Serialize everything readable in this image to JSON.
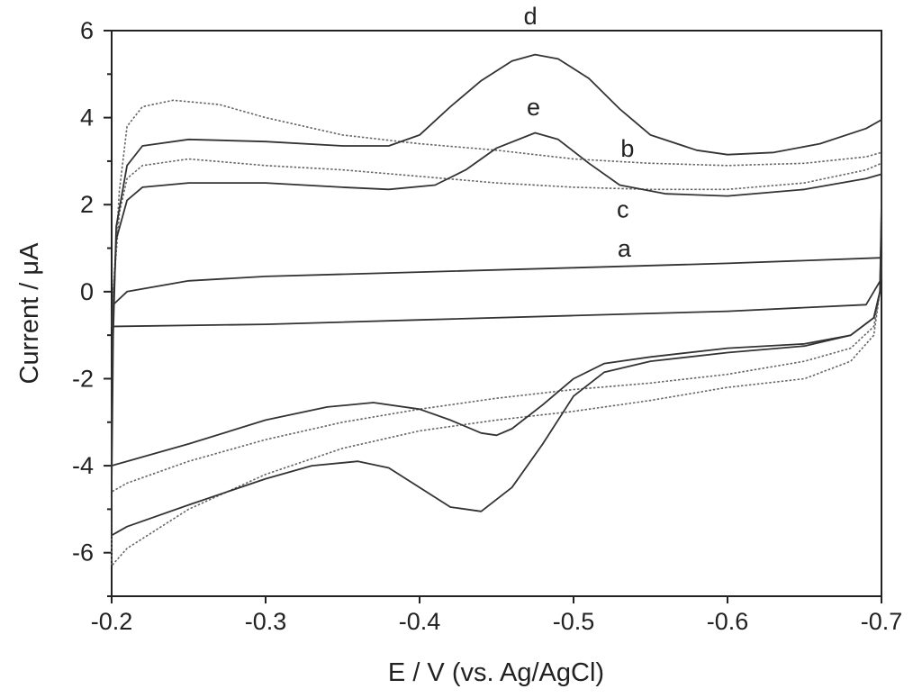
{
  "chart_data": {
    "type": "line",
    "xlabel": "E / V (vs. Ag/AgCl)",
    "ylabel": "Current / μA",
    "xlim": [
      -0.2,
      -0.7
    ],
    "ylim": [
      -7,
      6
    ],
    "x_axis_reversed": true,
    "x_ticks": [
      -0.2,
      -0.3,
      -0.4,
      -0.5,
      -0.6,
      -0.7
    ],
    "y_ticks": [
      -6,
      -4,
      -2,
      0,
      2,
      4,
      6
    ],
    "x_tick_labels": [
      "-0.2",
      "-0.3",
      "-0.4",
      "-0.5",
      "-0.6",
      "-0.7"
    ],
    "y_tick_labels": [
      "-6",
      "-4",
      "-2",
      "0",
      "2",
      "4",
      "6"
    ],
    "grid": false,
    "series": [
      {
        "name": "a",
        "style": "solid",
        "label_pos": [
          -0.533,
          0.8
        ],
        "points": [
          [
            -0.2,
            -0.7
          ],
          [
            -0.201,
            -0.3
          ],
          [
            -0.21,
            0.0
          ],
          [
            -0.25,
            0.25
          ],
          [
            -0.3,
            0.35
          ],
          [
            -0.4,
            0.45
          ],
          [
            -0.5,
            0.55
          ],
          [
            -0.6,
            0.65
          ],
          [
            -0.7,
            0.78
          ],
          [
            -0.7,
            0.3
          ],
          [
            -0.69,
            -0.3
          ],
          [
            -0.6,
            -0.45
          ],
          [
            -0.5,
            -0.55
          ],
          [
            -0.4,
            -0.65
          ],
          [
            -0.3,
            -0.75
          ],
          [
            -0.2,
            -0.8
          ],
          [
            -0.2,
            -0.7
          ]
        ]
      },
      {
        "name": "b",
        "style": "dotted",
        "label_pos": [
          -0.535,
          3.1
        ],
        "points": [
          [
            -0.2,
            -3.5
          ],
          [
            -0.201,
            0.0
          ],
          [
            -0.205,
            2.3
          ],
          [
            -0.21,
            3.8
          ],
          [
            -0.22,
            4.25
          ],
          [
            -0.24,
            4.4
          ],
          [
            -0.27,
            4.3
          ],
          [
            -0.3,
            4.0
          ],
          [
            -0.35,
            3.6
          ],
          [
            -0.4,
            3.4
          ],
          [
            -0.45,
            3.25
          ],
          [
            -0.5,
            3.05
          ],
          [
            -0.55,
            2.95
          ],
          [
            -0.6,
            2.9
          ],
          [
            -0.65,
            2.95
          ],
          [
            -0.69,
            3.1
          ],
          [
            -0.7,
            3.2
          ],
          [
            -0.7,
            2.0
          ],
          [
            -0.699,
            0.0
          ],
          [
            -0.695,
            -1.0
          ],
          [
            -0.68,
            -1.6
          ],
          [
            -0.65,
            -2.0
          ],
          [
            -0.6,
            -2.2
          ],
          [
            -0.55,
            -2.5
          ],
          [
            -0.5,
            -2.75
          ],
          [
            -0.45,
            -2.95
          ],
          [
            -0.4,
            -3.2
          ],
          [
            -0.35,
            -3.6
          ],
          [
            -0.3,
            -4.2
          ],
          [
            -0.25,
            -5.0
          ],
          [
            -0.21,
            -5.9
          ],
          [
            -0.2,
            -6.3
          ],
          [
            -0.2,
            -3.5
          ]
        ]
      },
      {
        "name": "c",
        "style": "dotted",
        "label_pos": [
          -0.532,
          1.7
        ],
        "points": [
          [
            -0.2,
            -3.0
          ],
          [
            -0.201,
            0.0
          ],
          [
            -0.205,
            1.8
          ],
          [
            -0.21,
            2.6
          ],
          [
            -0.22,
            2.9
          ],
          [
            -0.25,
            3.05
          ],
          [
            -0.3,
            2.9
          ],
          [
            -0.35,
            2.8
          ],
          [
            -0.4,
            2.65
          ],
          [
            -0.45,
            2.5
          ],
          [
            -0.5,
            2.4
          ],
          [
            -0.55,
            2.35
          ],
          [
            -0.6,
            2.35
          ],
          [
            -0.65,
            2.5
          ],
          [
            -0.69,
            2.8
          ],
          [
            -0.7,
            2.95
          ],
          [
            -0.7,
            1.8
          ],
          [
            -0.699,
            0.0
          ],
          [
            -0.695,
            -0.8
          ],
          [
            -0.68,
            -1.3
          ],
          [
            -0.65,
            -1.6
          ],
          [
            -0.6,
            -1.9
          ],
          [
            -0.55,
            -2.1
          ],
          [
            -0.5,
            -2.25
          ],
          [
            -0.45,
            -2.45
          ],
          [
            -0.4,
            -2.7
          ],
          [
            -0.35,
            -3.0
          ],
          [
            -0.3,
            -3.4
          ],
          [
            -0.25,
            -3.9
          ],
          [
            -0.21,
            -4.4
          ],
          [
            -0.2,
            -4.6
          ],
          [
            -0.2,
            -3.0
          ]
        ]
      },
      {
        "name": "d",
        "style": "solid",
        "label_pos": [
          -0.472,
          6.15
        ],
        "points": [
          [
            -0.2,
            -4.5
          ],
          [
            -0.201,
            -1.0
          ],
          [
            -0.203,
            1.5
          ],
          [
            -0.21,
            2.9
          ],
          [
            -0.22,
            3.35
          ],
          [
            -0.25,
            3.5
          ],
          [
            -0.3,
            3.45
          ],
          [
            -0.35,
            3.35
          ],
          [
            -0.38,
            3.35
          ],
          [
            -0.4,
            3.6
          ],
          [
            -0.42,
            4.25
          ],
          [
            -0.44,
            4.85
          ],
          [
            -0.46,
            5.3
          ],
          [
            -0.475,
            5.45
          ],
          [
            -0.49,
            5.35
          ],
          [
            -0.51,
            4.9
          ],
          [
            -0.53,
            4.2
          ],
          [
            -0.55,
            3.6
          ],
          [
            -0.58,
            3.25
          ],
          [
            -0.6,
            3.15
          ],
          [
            -0.63,
            3.2
          ],
          [
            -0.66,
            3.4
          ],
          [
            -0.69,
            3.75
          ],
          [
            -0.7,
            3.95
          ],
          [
            -0.7,
            2.0
          ],
          [
            -0.699,
            0.0
          ],
          [
            -0.695,
            -0.6
          ],
          [
            -0.68,
            -1.0
          ],
          [
            -0.65,
            -1.25
          ],
          [
            -0.6,
            -1.4
          ],
          [
            -0.55,
            -1.6
          ],
          [
            -0.52,
            -1.85
          ],
          [
            -0.5,
            -2.4
          ],
          [
            -0.48,
            -3.5
          ],
          [
            -0.46,
            -4.5
          ],
          [
            -0.44,
            -5.05
          ],
          [
            -0.42,
            -4.95
          ],
          [
            -0.4,
            -4.5
          ],
          [
            -0.38,
            -4.05
          ],
          [
            -0.36,
            -3.9
          ],
          [
            -0.33,
            -4.0
          ],
          [
            -0.3,
            -4.3
          ],
          [
            -0.25,
            -4.9
          ],
          [
            -0.21,
            -5.4
          ],
          [
            -0.2,
            -5.6
          ],
          [
            -0.2,
            -4.5
          ]
        ]
      },
      {
        "name": "e",
        "style": "solid",
        "label_pos": [
          -0.474,
          4.05
        ],
        "points": [
          [
            -0.2,
            -3.0
          ],
          [
            -0.201,
            -0.5
          ],
          [
            -0.203,
            1.2
          ],
          [
            -0.21,
            2.1
          ],
          [
            -0.22,
            2.4
          ],
          [
            -0.25,
            2.5
          ],
          [
            -0.3,
            2.5
          ],
          [
            -0.35,
            2.4
          ],
          [
            -0.38,
            2.35
          ],
          [
            -0.41,
            2.45
          ],
          [
            -0.43,
            2.8
          ],
          [
            -0.45,
            3.3
          ],
          [
            -0.475,
            3.65
          ],
          [
            -0.49,
            3.5
          ],
          [
            -0.51,
            2.95
          ],
          [
            -0.53,
            2.45
          ],
          [
            -0.56,
            2.25
          ],
          [
            -0.6,
            2.2
          ],
          [
            -0.65,
            2.35
          ],
          [
            -0.69,
            2.6
          ],
          [
            -0.7,
            2.7
          ],
          [
            -0.7,
            1.5
          ],
          [
            -0.699,
            0.0
          ],
          [
            -0.695,
            -0.6
          ],
          [
            -0.68,
            -1.0
          ],
          [
            -0.65,
            -1.2
          ],
          [
            -0.6,
            -1.3
          ],
          [
            -0.55,
            -1.5
          ],
          [
            -0.52,
            -1.65
          ],
          [
            -0.5,
            -2.0
          ],
          [
            -0.48,
            -2.6
          ],
          [
            -0.46,
            -3.15
          ],
          [
            -0.45,
            -3.3
          ],
          [
            -0.44,
            -3.25
          ],
          [
            -0.42,
            -2.95
          ],
          [
            -0.4,
            -2.7
          ],
          [
            -0.37,
            -2.55
          ],
          [
            -0.34,
            -2.65
          ],
          [
            -0.3,
            -2.95
          ],
          [
            -0.25,
            -3.5
          ],
          [
            -0.21,
            -3.9
          ],
          [
            -0.2,
            -4.0
          ],
          [
            -0.2,
            -3.0
          ]
        ]
      }
    ]
  }
}
